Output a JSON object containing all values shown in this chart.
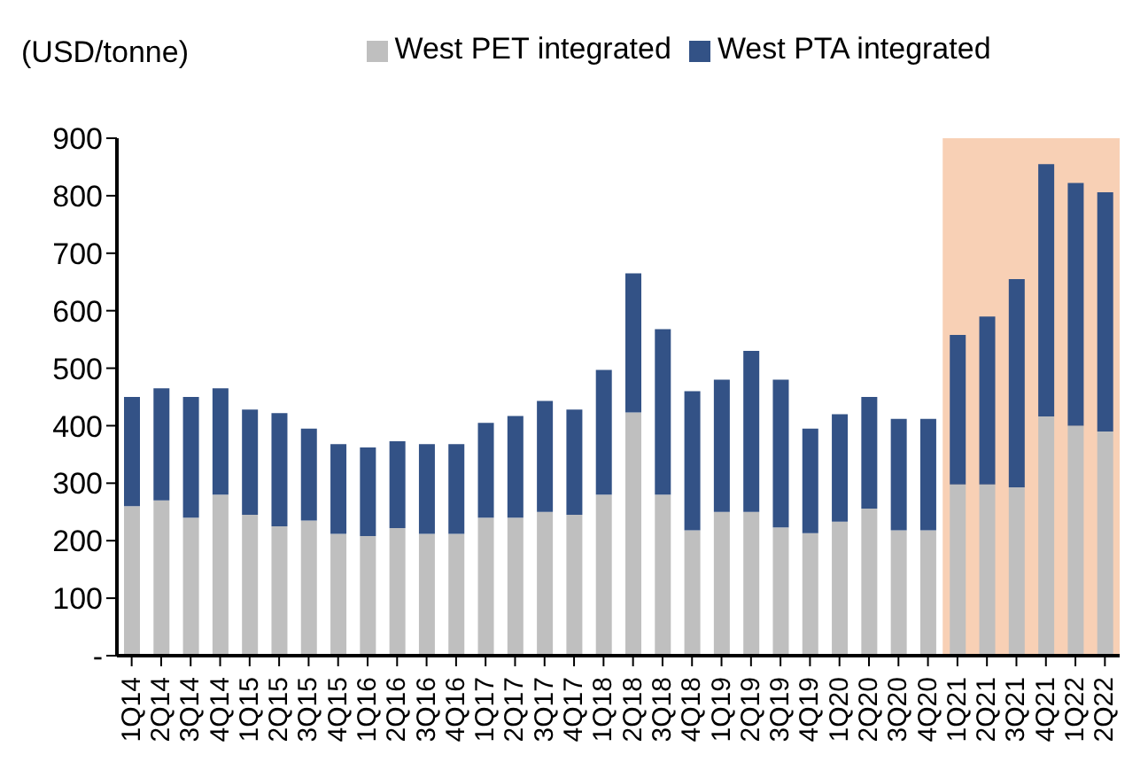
{
  "chart_data": {
    "type": "bar",
    "stacked": true,
    "ylabel": "(USD/tonne)",
    "categories": [
      "1Q14",
      "2Q14",
      "3Q14",
      "4Q14",
      "1Q15",
      "2Q15",
      "3Q15",
      "4Q15",
      "1Q16",
      "2Q16",
      "3Q16",
      "4Q16",
      "1Q17",
      "2Q17",
      "3Q17",
      "4Q17",
      "1Q18",
      "2Q18",
      "3Q18",
      "4Q18",
      "1Q19",
      "2Q19",
      "3Q19",
      "4Q19",
      "1Q20",
      "2Q20",
      "3Q20",
      "4Q20",
      "1Q21",
      "2Q21",
      "3Q21",
      "4Q21",
      "1Q22",
      "2Q22"
    ],
    "series": [
      {
        "name": "West PET integrated",
        "color": "#bfbfbf",
        "values": [
          260,
          270,
          240,
          280,
          245,
          225,
          235,
          212,
          208,
          222,
          212,
          212,
          240,
          240,
          250,
          245,
          280,
          423,
          280,
          218,
          250,
          250,
          223,
          213,
          233,
          256,
          218,
          218,
          298,
          298,
          293,
          416,
          400,
          390
        ]
      },
      {
        "name": "West PTA integrated",
        "color": "#335286",
        "values": [
          190,
          195,
          210,
          185,
          183,
          197,
          160,
          156,
          154,
          151,
          156,
          156,
          165,
          177,
          193,
          183,
          217,
          242,
          288,
          242,
          230,
          280,
          257,
          182,
          187,
          194,
          194,
          194,
          260,
          292,
          362,
          439,
          422,
          416
        ]
      }
    ],
    "ylim": [
      0,
      900
    ],
    "yticks": [
      {
        "value": 0,
        "label": "-"
      },
      100,
      200,
      300,
      400,
      500,
      600,
      700,
      800,
      900
    ],
    "bands": [
      {
        "axis": "x",
        "from": "1Q21",
        "to": "2Q22",
        "color": "#f4b183"
      }
    ],
    "legend": "top"
  }
}
